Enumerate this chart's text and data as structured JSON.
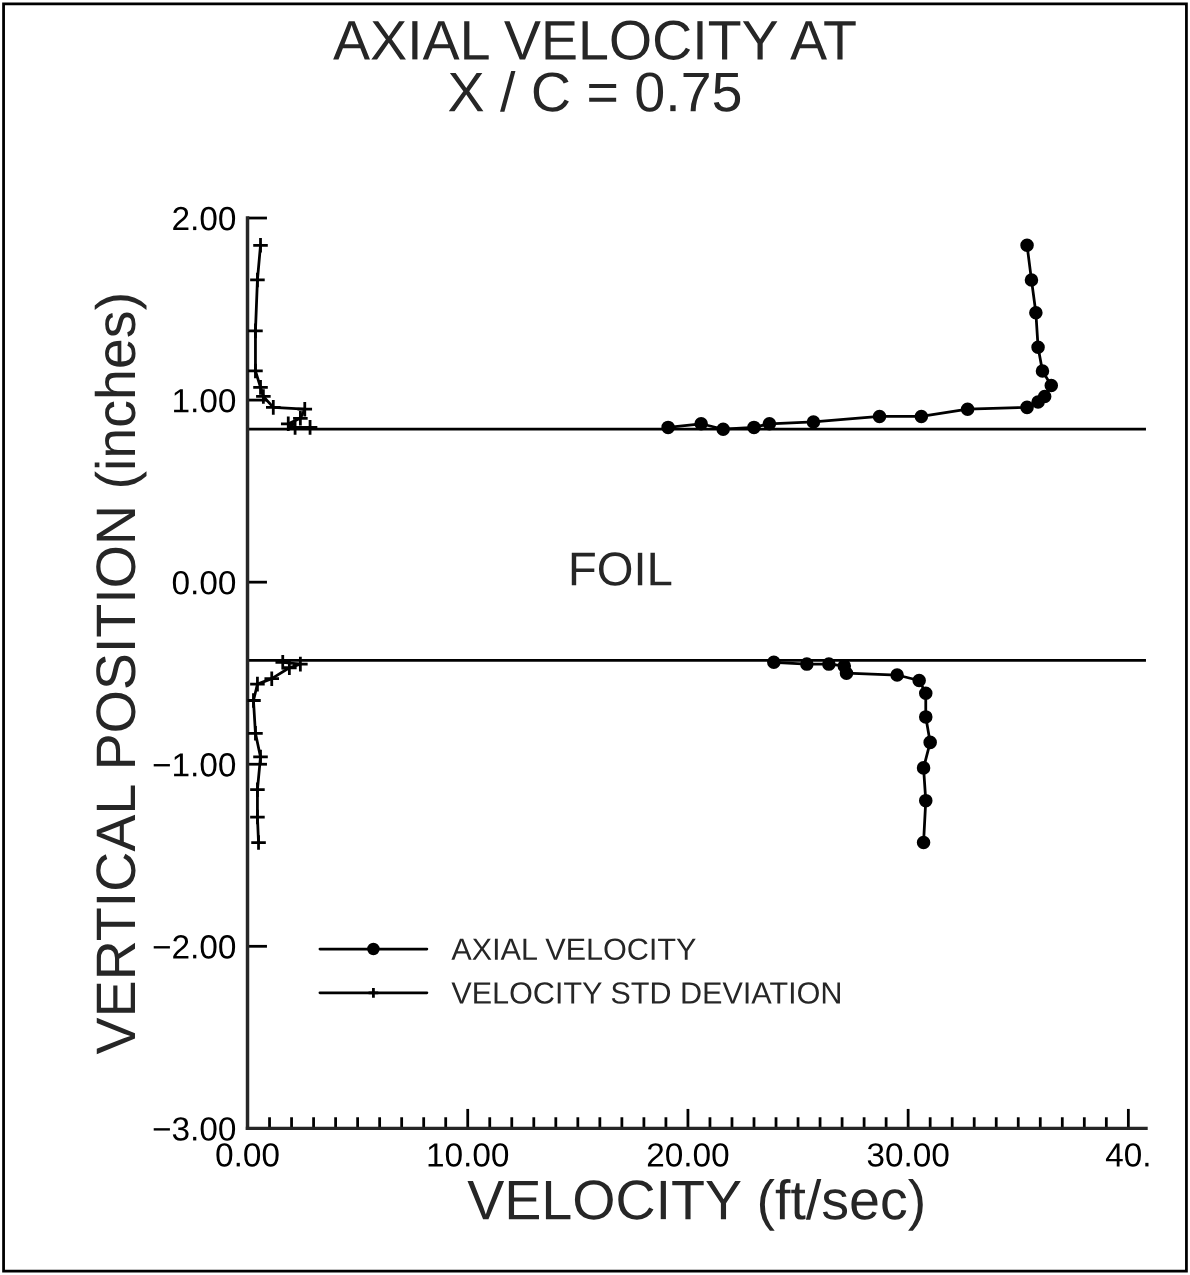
{
  "chart_data": {
    "type": "line",
    "title": "AXIAL VELOCITY AT\nX / C = 0.75",
    "xlabel": "VELOCITY (ft/sec)",
    "ylabel": "VERTICAL POSITION (inches)",
    "xlim": [
      0,
      40.8
    ],
    "ylim": [
      -3,
      2
    ],
    "xticks": [
      {
        "value": 0,
        "label": "0.00"
      },
      {
        "value": 10,
        "label": "10.00"
      },
      {
        "value": 20,
        "label": "20.00"
      },
      {
        "value": 30,
        "label": "30.00"
      },
      {
        "value": 40,
        "label": "40."
      }
    ],
    "yticks": [
      {
        "value": -3,
        "label": "−3.00"
      },
      {
        "value": -2,
        "label": "−2.00"
      },
      {
        "value": -1,
        "label": "−1.00"
      },
      {
        "value": 0,
        "label": "0.00"
      },
      {
        "value": 1,
        "label": "1.00"
      },
      {
        "value": 2,
        "label": "2.00"
      }
    ],
    "series": [
      {
        "name": "AXIAL VELOCITY",
        "color": "#000000",
        "marker": "circle",
        "x": [
          35.4,
          35.6,
          35.8,
          35.9,
          36.1,
          36.5,
          36.2,
          35.9,
          35.4,
          32.7,
          30.6,
          28.7,
          25.7,
          23.7,
          23.0,
          21.6,
          20.6,
          19.1,
          null,
          23.9,
          25.4,
          26.4,
          27.1,
          27.2,
          29.5,
          30.5,
          30.8,
          30.8,
          31.0,
          30.7,
          30.8,
          30.7
        ],
        "values": [
          1.85,
          1.66,
          1.48,
          1.29,
          1.16,
          1.08,
          1.02,
          0.99,
          0.96,
          0.95,
          0.91,
          0.91,
          0.88,
          0.87,
          0.85,
          0.84,
          0.87,
          0.85,
          null,
          -0.44,
          -0.45,
          -0.45,
          -0.46,
          -0.5,
          -0.51,
          -0.54,
          -0.61,
          -0.74,
          -0.88,
          -1.02,
          -1.2,
          -1.43
        ]
      },
      {
        "name": "VELOCITY STD DEVIATION",
        "color": "#000000",
        "marker": "cross",
        "x": [
          0.59,
          0.45,
          0.36,
          0.36,
          0.59,
          0.72,
          1.17,
          2.6,
          2.4,
          1.85,
          2.16,
          2.84,
          null,
          1.6,
          2.4,
          1.9,
          1.1,
          0.45,
          0.27,
          0.36,
          0.59,
          0.45,
          0.45,
          0.5
        ],
        "values": [
          1.85,
          1.66,
          1.38,
          1.16,
          1.07,
          1.02,
          0.96,
          0.95,
          0.9,
          0.87,
          0.85,
          0.85,
          null,
          -0.44,
          -0.45,
          -0.47,
          -0.53,
          -0.56,
          -0.65,
          -0.83,
          -0.96,
          -1.14,
          -1.29,
          -1.43
        ]
      }
    ],
    "ref_lines": [
      {
        "axis": "y",
        "value": 0.84,
        "color": "#000000"
      },
      {
        "axis": "y",
        "value": -0.43,
        "color": "#000000"
      }
    ],
    "annotations": [
      "FOIL"
    ],
    "legend": "bottom left",
    "grid": false,
    "line_style": "solid"
  }
}
